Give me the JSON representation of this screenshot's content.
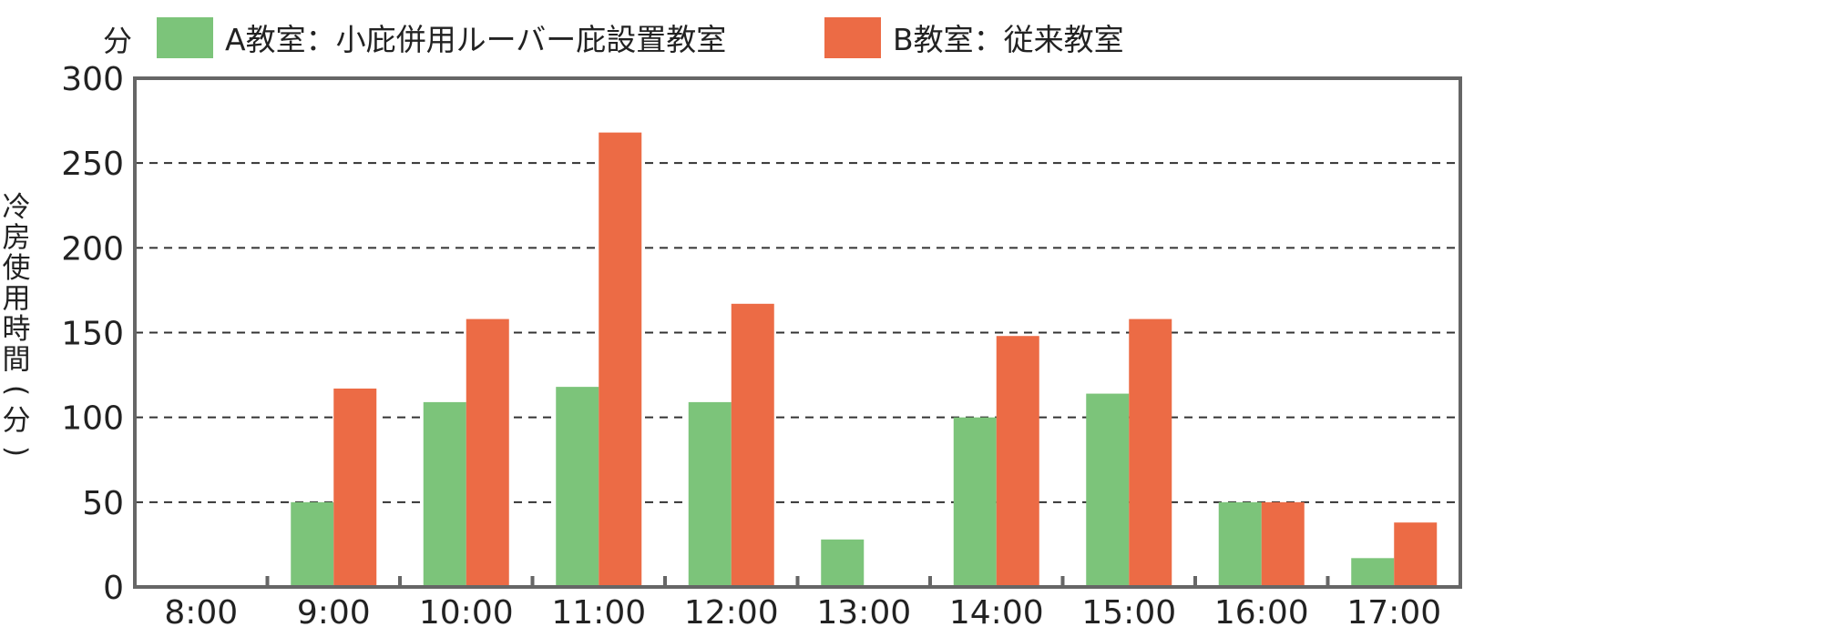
{
  "chart_data": {
    "type": "bar",
    "unit_label": "分",
    "ylabel": "冷房使用時間(分)",
    "xlabel": "",
    "title": "",
    "categories": [
      "8:00",
      "9:00",
      "10:00",
      "11:00",
      "12:00",
      "13:00",
      "14:00",
      "15:00",
      "16:00",
      "17:00"
    ],
    "series": [
      {
        "name": "A教室：小庇併用ルーバー庇設置教室",
        "color": "#7cc47a",
        "values": [
          0,
          50,
          109,
          118,
          109,
          28,
          100,
          114,
          50,
          17
        ]
      },
      {
        "name": "B教室：従来教室",
        "color": "#ec6b45",
        "values": [
          0,
          117,
          158,
          268,
          167,
          0,
          148,
          158,
          50,
          38
        ]
      }
    ],
    "ylim": [
      0,
      300
    ],
    "yticks": [
      0,
      50,
      100,
      150,
      200,
      250,
      300
    ],
    "grid": "dashed horizontal",
    "legend_position": "top-left"
  }
}
